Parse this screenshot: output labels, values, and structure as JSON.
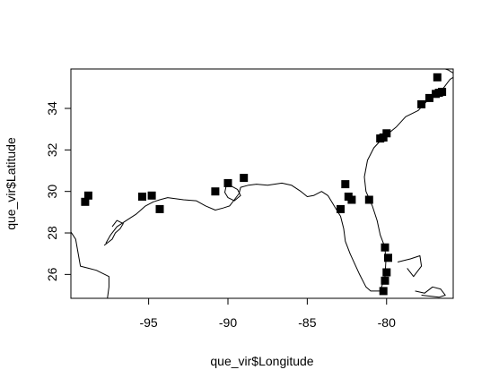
{
  "chart_data": {
    "type": "scatter",
    "title": "",
    "xlabel": "que_vir$Longitude",
    "ylabel": "que_vir$Latitude",
    "xlim": [
      -99.9,
      -75.8
    ],
    "ylim": [
      24.85,
      35.9
    ],
    "xticks": [
      -95,
      -90,
      -85,
      -80
    ],
    "yticks": [
      26,
      28,
      30,
      32,
      34
    ],
    "grid": false,
    "legend": "none",
    "marker": "filled-square",
    "colors": {
      "points": "#000000",
      "coastline": "#000000",
      "frame": "#000000"
    },
    "points": [
      {
        "x": -99.0,
        "y": 29.5
      },
      {
        "x": -98.8,
        "y": 29.8
      },
      {
        "x": -95.4,
        "y": 29.75
      },
      {
        "x": -94.8,
        "y": 29.8
      },
      {
        "x": -94.3,
        "y": 29.15
      },
      {
        "x": -90.8,
        "y": 30.0
      },
      {
        "x": -90.0,
        "y": 30.4
      },
      {
        "x": -89.0,
        "y": 30.65
      },
      {
        "x": -82.9,
        "y": 29.15
      },
      {
        "x": -82.6,
        "y": 30.35
      },
      {
        "x": -82.4,
        "y": 29.75
      },
      {
        "x": -82.2,
        "y": 29.6
      },
      {
        "x": -81.1,
        "y": 29.6
      },
      {
        "x": -80.4,
        "y": 32.55
      },
      {
        "x": -80.2,
        "y": 32.6
      },
      {
        "x": -80.0,
        "y": 32.8
      },
      {
        "x": -80.1,
        "y": 27.3
      },
      {
        "x": -79.9,
        "y": 26.8
      },
      {
        "x": -80.0,
        "y": 26.1
      },
      {
        "x": -80.1,
        "y": 25.7
      },
      {
        "x": -80.2,
        "y": 25.2
      },
      {
        "x": -77.8,
        "y": 34.2
      },
      {
        "x": -77.3,
        "y": 34.5
      },
      {
        "x": -76.9,
        "y": 34.7
      },
      {
        "x": -76.7,
        "y": 34.75
      },
      {
        "x": -76.5,
        "y": 34.8
      },
      {
        "x": -76.8,
        "y": 35.5
      }
    ],
    "coastline": [
      [
        [
          -99.9,
          28.05
        ],
        [
          -99.6,
          27.7
        ],
        [
          -99.3,
          26.4
        ],
        [
          -98.8,
          26.3
        ],
        [
          -98.3,
          26.2
        ],
        [
          -97.5,
          25.9
        ],
        [
          -97.5,
          25.4
        ],
        [
          -97.6,
          24.85
        ]
      ],
      [
        [
          -97.7,
          27.5
        ],
        [
          -97.4,
          27.9
        ],
        [
          -97.0,
          28.3
        ],
        [
          -96.4,
          28.6
        ],
        [
          -95.8,
          28.9
        ],
        [
          -95.2,
          29.3
        ],
        [
          -94.7,
          29.5
        ],
        [
          -94.3,
          29.6
        ],
        [
          -93.8,
          29.7
        ],
        [
          -92.8,
          29.6
        ],
        [
          -92.0,
          29.55
        ],
        [
          -91.4,
          29.3
        ],
        [
          -90.8,
          29.1
        ],
        [
          -90.3,
          29.2
        ],
        [
          -89.9,
          29.3
        ],
        [
          -89.6,
          29.6
        ],
        [
          -89.3,
          29.9
        ],
        [
          -89.2,
          30.2
        ],
        [
          -88.7,
          30.3
        ],
        [
          -88.2,
          30.35
        ],
        [
          -87.5,
          30.3
        ],
        [
          -86.6,
          30.4
        ],
        [
          -86.0,
          30.3
        ],
        [
          -85.4,
          30.0
        ],
        [
          -85.0,
          29.75
        ],
        [
          -84.6,
          29.8
        ],
        [
          -84.1,
          30.0
        ],
        [
          -83.7,
          29.8
        ],
        [
          -83.3,
          29.3
        ],
        [
          -82.9,
          28.8
        ],
        [
          -82.7,
          28.2
        ],
        [
          -82.6,
          27.6
        ],
        [
          -82.3,
          27.0
        ],
        [
          -82.0,
          26.5
        ],
        [
          -81.7,
          26.0
        ],
        [
          -81.3,
          25.4
        ],
        [
          -81.0,
          25.2
        ],
        [
          -80.4,
          25.2
        ],
        [
          -80.1,
          25.9
        ],
        [
          -80.05,
          26.6
        ],
        [
          -80.1,
          27.3
        ],
        [
          -80.4,
          27.9
        ],
        [
          -80.6,
          28.6
        ],
        [
          -80.9,
          29.3
        ],
        [
          -81.3,
          30.0
        ],
        [
          -81.4,
          30.7
        ],
        [
          -81.2,
          31.5
        ],
        [
          -80.8,
          32.1
        ],
        [
          -80.2,
          32.6
        ],
        [
          -79.4,
          33.1
        ],
        [
          -78.8,
          33.6
        ],
        [
          -78.0,
          33.9
        ],
        [
          -77.4,
          34.4
        ],
        [
          -76.9,
          34.65
        ],
        [
          -76.4,
          35.0
        ],
        [
          -76.0,
          35.4
        ],
        [
          -75.8,
          35.5
        ]
      ],
      [
        [
          -97.8,
          27.4
        ],
        [
          -97.3,
          27.7
        ],
        [
          -97.1,
          28.0
        ],
        [
          -96.8,
          28.2
        ],
        [
          -96.6,
          28.45
        ],
        [
          -97.0,
          28.6
        ],
        [
          -97.3,
          28.3
        ]
      ],
      [
        [
          -89.9,
          30.3
        ],
        [
          -89.4,
          30.1
        ],
        [
          -89.2,
          29.8
        ],
        [
          -89.6,
          29.55
        ],
        [
          -90.0,
          29.7
        ],
        [
          -90.2,
          29.95
        ],
        [
          -90.1,
          30.3
        ]
      ],
      [
        [
          -79.3,
          26.6
        ],
        [
          -78.5,
          26.75
        ],
        [
          -77.9,
          26.9
        ],
        [
          -77.8,
          26.4
        ],
        [
          -78.3,
          25.9
        ],
        [
          -78.7,
          26.3
        ]
      ],
      [
        [
          -78.2,
          25.2
        ],
        [
          -77.6,
          25.1
        ],
        [
          -77.1,
          25.4
        ],
        [
          -76.6,
          25.3
        ],
        [
          -76.3,
          25.0
        ],
        [
          -76.7,
          24.9
        ],
        [
          -77.8,
          25.0
        ]
      ],
      [
        [
          -75.8,
          35.7
        ],
        [
          -76.1,
          35.85
        ],
        [
          -76.3,
          35.9
        ]
      ]
    ]
  }
}
